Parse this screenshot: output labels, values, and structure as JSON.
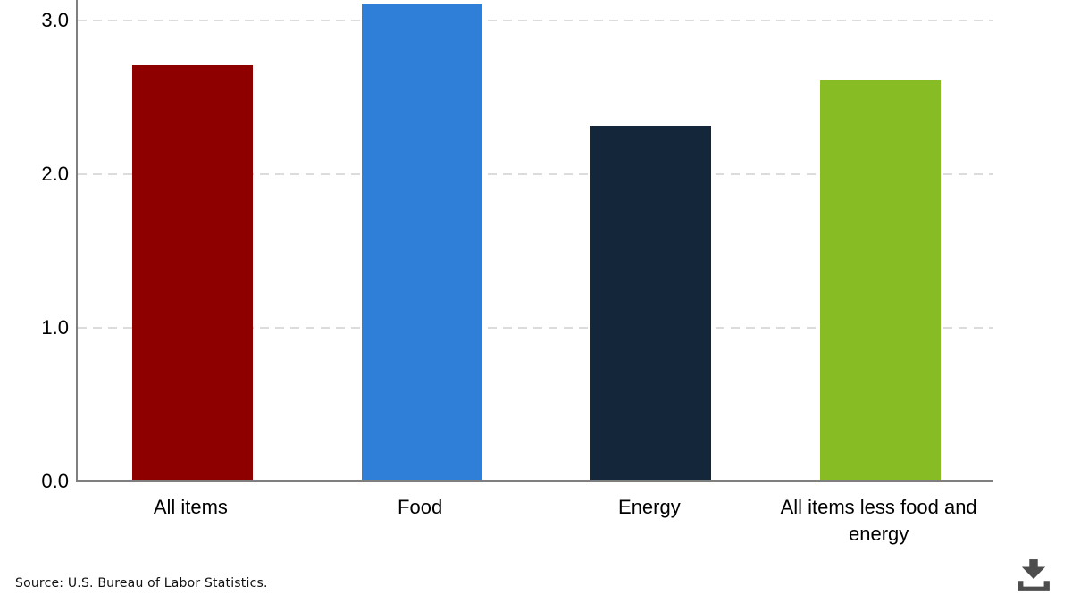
{
  "chart_data": {
    "type": "bar",
    "title": "",
    "xlabel": "",
    "ylabel": "",
    "categories": [
      "All items",
      "Food",
      "Energy",
      "All items less food and energy"
    ],
    "values": [
      2.7,
      3.1,
      2.3,
      2.6
    ],
    "bar_colors": [
      "#8e0000",
      "#2f7ed8",
      "#13263a",
      "#87bc25"
    ],
    "yticks": [
      "0.0",
      "1.0",
      "2.0",
      "3.0"
    ],
    "ylim": [
      0,
      3.13
    ],
    "grid": "horizontal-dashed",
    "gridline_color": "#dcdcdc",
    "axis_color": "#7f7f7f",
    "legend": "none",
    "note": "chart cropped at top; Food bar exceeds 3.0 gridline"
  },
  "footer": {
    "source": "Source: U.S. Bureau of Labor Statistics.",
    "download_icon": "download-icon",
    "icon_color": "#4d4d4d"
  }
}
